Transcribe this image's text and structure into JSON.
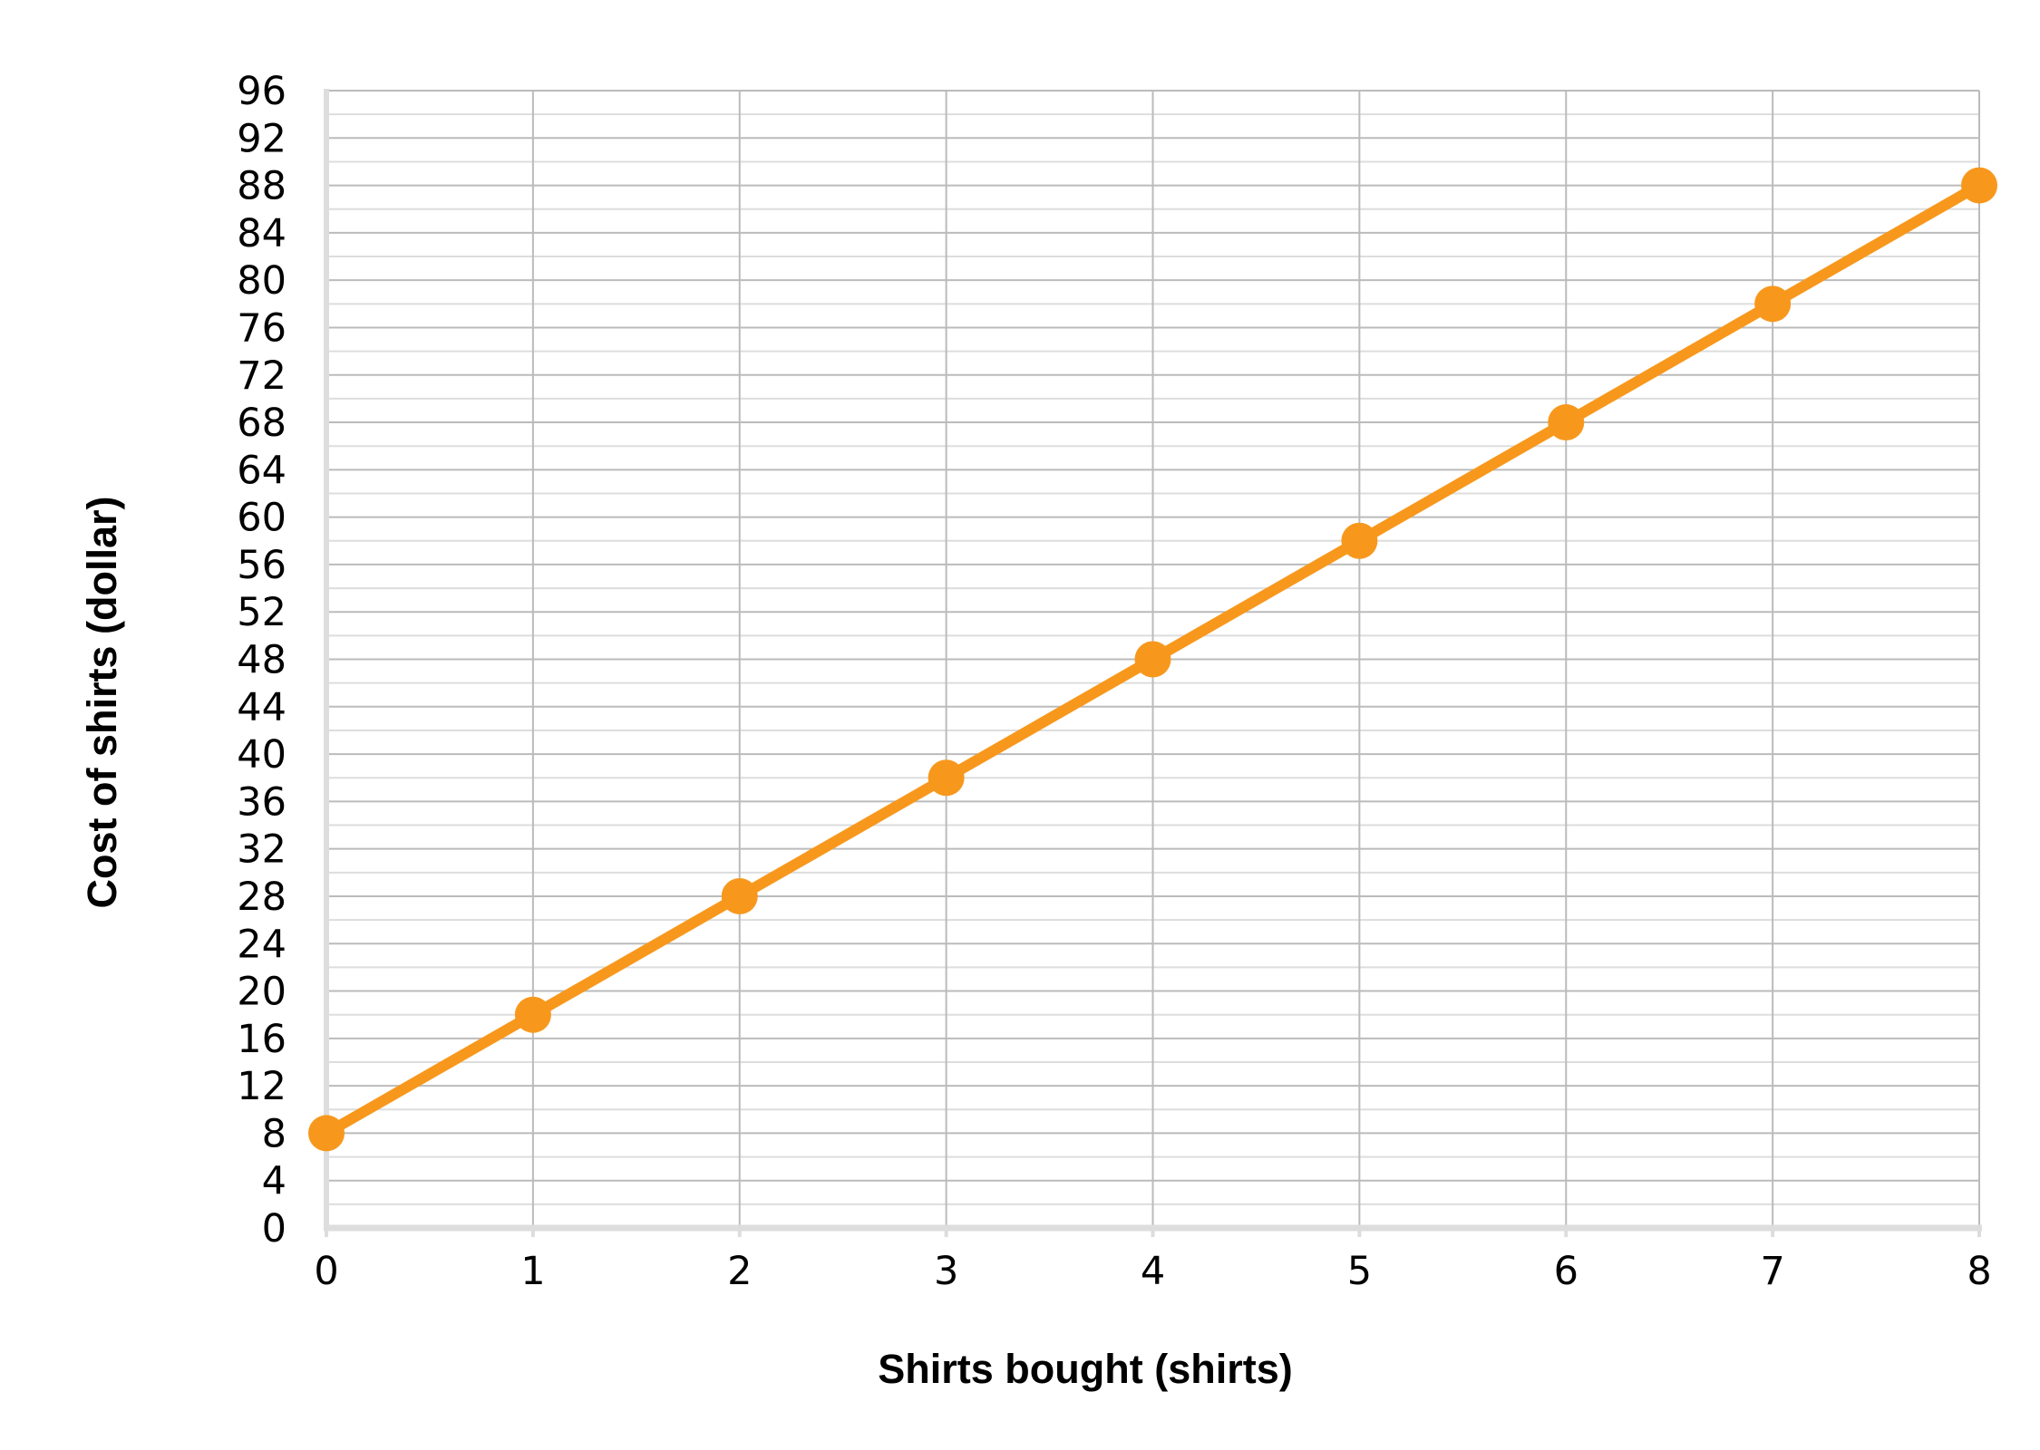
{
  "chart_data": {
    "type": "line",
    "title": "",
    "xlabel": "Shirts bought (shirts)",
    "ylabel": "Cost of shirts (dollar)",
    "x": [
      0,
      1,
      2,
      3,
      4,
      5,
      6,
      7,
      8
    ],
    "series": [
      {
        "values": [
          8,
          18,
          28,
          38,
          48,
          58,
          68,
          78,
          88
        ],
        "color": "#F7981D",
        "markers": true
      }
    ],
    "xlim": [
      0,
      8
    ],
    "ylim": [
      0,
      96
    ],
    "x_ticks": [
      0,
      1,
      2,
      3,
      4,
      5,
      6,
      7,
      8
    ],
    "y_ticks": [
      0,
      4,
      8,
      12,
      16,
      20,
      24,
      28,
      32,
      36,
      40,
      44,
      48,
      52,
      56,
      60,
      64,
      68,
      72,
      76,
      80,
      84,
      88,
      92,
      96
    ],
    "y_minor_step": 2,
    "grid": true,
    "legend": "none",
    "colors": {
      "series": "#F7981D",
      "grid_major": "#BBBBBB",
      "grid_minor": "#DDDDDD",
      "axis": "#DDDDDD"
    }
  }
}
